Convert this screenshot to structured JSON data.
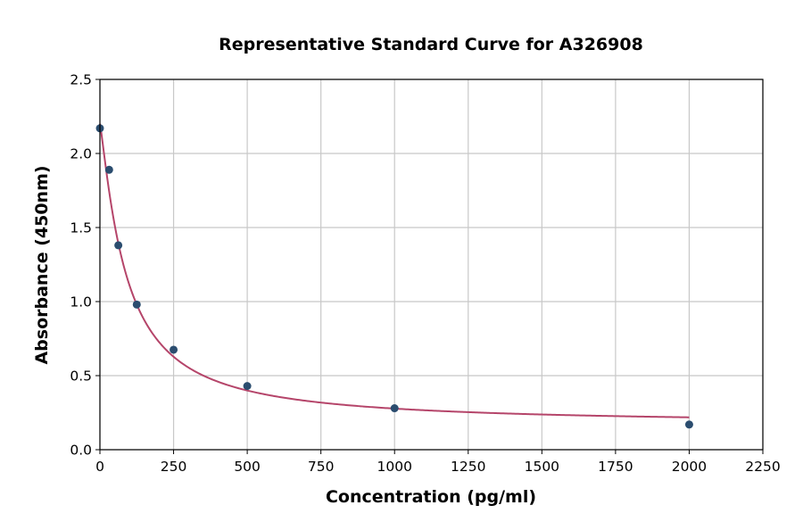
{
  "chart_data": {
    "type": "scatter",
    "title": "Representative Standard Curve for A326908",
    "xlabel": "Concentration (pg/ml)",
    "ylabel": "Absorbance (450nm)",
    "xlim": [
      0,
      2250
    ],
    "ylim": [
      0,
      2.5
    ],
    "xticks": [
      "0",
      "250",
      "500",
      "750",
      "1000",
      "1250",
      "1500",
      "1750",
      "2000",
      "2250"
    ],
    "yticks": [
      "0.0",
      "0.5",
      "1.0",
      "1.5",
      "2.0",
      "2.5"
    ],
    "grid": true,
    "legend": "none",
    "points": {
      "x": [
        0,
        31.25,
        62.5,
        125,
        250,
        500,
        1000,
        2000
      ],
      "y": [
        2.17,
        1.89,
        1.38,
        0.98,
        0.675,
        0.43,
        0.28,
        0.17
      ]
    },
    "fit_curve": {
      "model": "4PL",
      "a": 2.2,
      "d": 0.17,
      "c": 88.6,
      "b": 1.19,
      "x_range": [
        0,
        2000
      ]
    },
    "colors": {
      "points": "#2b4d6f",
      "curve": "#b5456a",
      "grid": "#c8c8c8"
    }
  }
}
